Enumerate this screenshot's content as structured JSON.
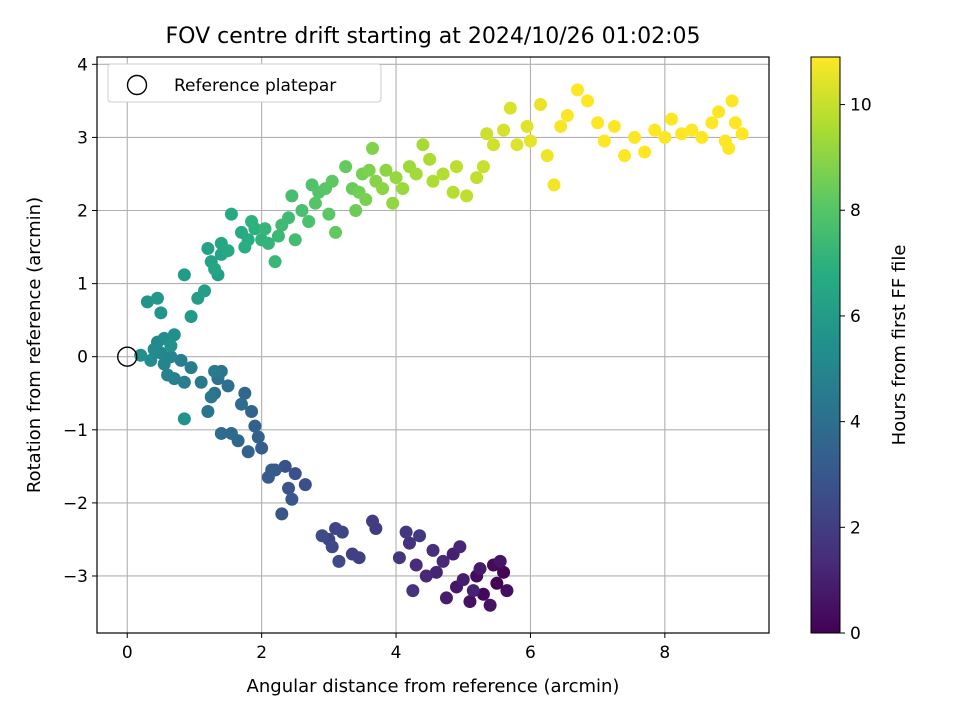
{
  "chart_data": {
    "type": "scatter",
    "title": "FOV centre drift starting at 2024/10/26 01:02:05",
    "xlabel": "Angular distance from reference (arcmin)",
    "ylabel": "Rotation from reference (arcmin)",
    "xlim": [
      -0.45,
      9.55
    ],
    "ylim": [
      -3.78,
      4.1
    ],
    "xticks": [
      0,
      2,
      4,
      6,
      8
    ],
    "yticks": [
      -3,
      -2,
      -1,
      0,
      1,
      2,
      3,
      4
    ],
    "grid": true,
    "legend": {
      "position": "top-left",
      "entries": [
        "Reference platepar"
      ]
    },
    "reference_point": {
      "x": 0,
      "y": 0,
      "label": "Reference platepar"
    },
    "colorbar": {
      "label": "Hours from first FF file",
      "min": 0,
      "max": 10.9,
      "ticks": [
        0,
        2,
        4,
        6,
        8,
        10
      ],
      "colormap": "viridis"
    },
    "points": [
      [
        5.5,
        -3.1,
        0.05
      ],
      [
        5.6,
        -2.95,
        0.12
      ],
      [
        5.3,
        -3.25,
        0.2
      ],
      [
        5.45,
        -2.85,
        0.28
      ],
      [
        5.2,
        -3.0,
        0.35
      ],
      [
        5.65,
        -3.2,
        0.42
      ],
      [
        5.1,
        -3.35,
        0.5
      ],
      [
        5.4,
        -3.4,
        0.57
      ],
      [
        5.55,
        -2.8,
        0.64
      ],
      [
        4.9,
        -3.15,
        0.71
      ],
      [
        5.25,
        -2.9,
        0.78
      ],
      [
        4.75,
        -3.3,
        0.85
      ],
      [
        5.0,
        -3.05,
        0.92
      ],
      [
        4.85,
        -2.7,
        0.99
      ],
      [
        5.15,
        -3.2,
        1.06
      ],
      [
        4.6,
        -2.95,
        1.13
      ],
      [
        4.95,
        -2.6,
        1.2
      ],
      [
        4.45,
        -3.0,
        1.27
      ],
      [
        4.7,
        -2.8,
        1.34
      ],
      [
        4.3,
        -2.85,
        1.41
      ],
      [
        4.55,
        -2.65,
        1.48
      ],
      [
        4.2,
        -2.55,
        1.55
      ],
      [
        4.25,
        -3.2,
        1.62
      ],
      [
        4.05,
        -2.75,
        1.7
      ],
      [
        4.15,
        -2.4,
        1.78
      ],
      [
        4.35,
        -2.45,
        1.85
      ],
      [
        3.7,
        -2.35,
        1.92
      ],
      [
        3.65,
        -2.25,
        2.0
      ],
      [
        3.45,
        -2.75,
        2.07
      ],
      [
        3.35,
        -2.7,
        2.14
      ],
      [
        3.1,
        -2.35,
        2.21
      ],
      [
        3.0,
        -2.5,
        2.28
      ],
      [
        3.2,
        -2.4,
        2.35
      ],
      [
        3.05,
        -2.6,
        2.42
      ],
      [
        3.15,
        -2.8,
        2.5
      ],
      [
        2.9,
        -2.45,
        2.57
      ],
      [
        2.65,
        -1.75,
        2.64
      ],
      [
        2.5,
        -1.6,
        2.71
      ],
      [
        2.35,
        -1.5,
        2.78
      ],
      [
        2.4,
        -1.8,
        2.85
      ],
      [
        2.3,
        -2.15,
        2.92
      ],
      [
        2.45,
        -1.95,
        3.0
      ],
      [
        2.2,
        -1.55,
        3.07
      ],
      [
        2.1,
        -1.65,
        3.14
      ],
      [
        2.15,
        -1.55,
        3.21
      ],
      [
        2.0,
        -1.25,
        3.28
      ],
      [
        1.95,
        -1.1,
        3.35
      ],
      [
        1.9,
        -0.95,
        3.42
      ],
      [
        1.8,
        -1.3,
        3.5
      ],
      [
        1.85,
        -0.75,
        3.57
      ],
      [
        1.75,
        -0.5,
        3.64
      ],
      [
        1.65,
        -1.15,
        3.71
      ],
      [
        1.55,
        -1.05,
        3.78
      ],
      [
        1.4,
        -1.05,
        3.85
      ],
      [
        1.7,
        -0.65,
        3.92
      ],
      [
        1.5,
        -0.4,
        4.0
      ],
      [
        1.35,
        -0.3,
        4.07
      ],
      [
        1.3,
        -0.5,
        4.14
      ],
      [
        1.4,
        -0.2,
        4.21
      ],
      [
        1.2,
        -0.75,
        4.28
      ],
      [
        1.25,
        -0.55,
        4.35
      ],
      [
        1.1,
        -0.35,
        4.42
      ],
      [
        1.3,
        -0.2,
        4.49
      ],
      [
        0.95,
        -0.15,
        4.56
      ],
      [
        0.85,
        -0.35,
        4.63
      ],
      [
        0.8,
        -0.05,
        4.7
      ],
      [
        0.7,
        -0.3,
        4.77
      ],
      [
        0.6,
        -0.25,
        4.84
      ],
      [
        0.65,
        0.0,
        4.91
      ],
      [
        0.55,
        -0.1,
        4.98
      ],
      [
        0.5,
        0.05,
        5.05
      ],
      [
        0.45,
        0.2,
        5.12
      ],
      [
        0.4,
        0.1,
        5.19
      ],
      [
        0.35,
        -0.05,
        5.26
      ],
      [
        0.55,
        0.25,
        5.33
      ],
      [
        0.7,
        0.3,
        5.4
      ],
      [
        0.2,
        0.02,
        5.47
      ],
      [
        0.85,
        -0.85,
        5.54
      ],
      [
        0.65,
        0.15,
        5.61
      ],
      [
        0.3,
        0.75,
        5.68
      ],
      [
        0.5,
        0.6,
        5.75
      ],
      [
        0.45,
        0.8,
        5.82
      ],
      [
        0.95,
        0.55,
        5.89
      ],
      [
        0.85,
        1.12,
        5.96
      ],
      [
        1.05,
        0.8,
        6.03
      ],
      [
        1.15,
        0.9,
        6.1
      ],
      [
        1.35,
        1.12,
        6.17
      ],
      [
        1.25,
        1.3,
        6.24
      ],
      [
        1.2,
        1.48,
        6.31
      ],
      [
        1.4,
        1.4,
        6.38
      ],
      [
        1.3,
        1.2,
        6.45
      ],
      [
        1.4,
        1.55,
        6.52
      ],
      [
        1.5,
        1.45,
        6.59
      ],
      [
        1.55,
        1.95,
        6.66
      ],
      [
        1.7,
        1.7,
        6.73
      ],
      [
        1.8,
        1.6,
        6.8
      ],
      [
        1.75,
        1.5,
        6.87
      ],
      [
        1.9,
        1.75,
        6.94
      ],
      [
        1.85,
        1.85,
        7.01
      ],
      [
        2.0,
        1.6,
        7.08
      ],
      [
        2.1,
        1.55,
        7.15
      ],
      [
        2.05,
        1.75,
        7.22
      ],
      [
        2.2,
        1.3,
        7.29
      ],
      [
        2.25,
        1.65,
        7.36
      ],
      [
        2.3,
        1.8,
        7.43
      ],
      [
        2.4,
        1.9,
        7.5
      ],
      [
        2.5,
        1.6,
        7.57
      ],
      [
        2.45,
        2.2,
        7.64
      ],
      [
        2.6,
        2.0,
        7.71
      ],
      [
        2.7,
        1.85,
        7.78
      ],
      [
        2.75,
        2.35,
        7.85
      ],
      [
        2.85,
        2.25,
        7.92
      ],
      [
        2.8,
        2.1,
        7.99
      ],
      [
        2.95,
        2.3,
        8.06
      ],
      [
        3.0,
        1.95,
        8.13
      ],
      [
        3.05,
        2.4,
        8.2
      ],
      [
        3.1,
        1.7,
        8.27
      ],
      [
        3.25,
        2.6,
        8.34
      ],
      [
        3.35,
        2.3,
        8.41
      ],
      [
        3.4,
        2.0,
        8.48
      ],
      [
        3.45,
        2.25,
        8.55
      ],
      [
        3.5,
        2.5,
        8.62
      ],
      [
        3.55,
        2.15,
        8.69
      ],
      [
        3.6,
        2.55,
        8.76
      ],
      [
        3.65,
        2.85,
        8.83
      ],
      [
        3.7,
        2.4,
        8.9
      ],
      [
        3.8,
        2.3,
        8.97
      ],
      [
        3.85,
        2.55,
        9.04
      ],
      [
        3.95,
        2.1,
        9.11
      ],
      [
        4.0,
        2.45,
        9.18
      ],
      [
        4.1,
        2.3,
        9.25
      ],
      [
        4.2,
        2.6,
        9.32
      ],
      [
        4.3,
        2.5,
        9.39
      ],
      [
        4.4,
        2.9,
        9.46
      ],
      [
        4.5,
        2.7,
        9.53
      ],
      [
        4.55,
        2.4,
        9.6
      ],
      [
        4.7,
        2.5,
        9.67
      ],
      [
        4.85,
        2.25,
        9.74
      ],
      [
        4.9,
        2.6,
        9.81
      ],
      [
        5.05,
        2.2,
        9.88
      ],
      [
        5.2,
        2.45,
        9.95
      ],
      [
        5.3,
        2.6,
        10.02
      ],
      [
        5.35,
        3.05,
        10.09
      ],
      [
        5.45,
        2.9,
        10.16
      ],
      [
        5.6,
        3.1,
        10.23
      ],
      [
        5.7,
        3.4,
        10.3
      ],
      [
        5.8,
        2.9,
        10.37
      ],
      [
        5.95,
        3.15,
        10.44
      ],
      [
        6.0,
        2.95,
        10.51
      ],
      [
        6.15,
        3.45,
        10.58
      ],
      [
        6.25,
        2.75,
        10.65
      ],
      [
        6.35,
        2.35,
        10.72
      ],
      [
        6.45,
        3.15,
        10.79
      ],
      [
        6.55,
        3.3,
        10.86
      ],
      [
        6.7,
        3.65,
        10.88
      ],
      [
        6.85,
        3.5,
        10.9
      ],
      [
        7.0,
        3.2,
        10.9
      ],
      [
        7.1,
        2.95,
        10.9
      ],
      [
        7.25,
        3.15,
        10.9
      ],
      [
        7.4,
        2.75,
        10.9
      ],
      [
        7.55,
        3.0,
        10.9
      ],
      [
        7.7,
        2.8,
        10.9
      ],
      [
        7.85,
        3.1,
        10.9
      ],
      [
        8.0,
        3.0,
        10.9
      ],
      [
        8.1,
        3.25,
        10.9
      ],
      [
        8.25,
        3.05,
        10.9
      ],
      [
        8.4,
        3.1,
        10.9
      ],
      [
        8.55,
        3.0,
        10.9
      ],
      [
        8.7,
        3.2,
        10.9
      ],
      [
        8.8,
        3.35,
        10.9
      ],
      [
        8.9,
        2.95,
        10.9
      ],
      [
        9.0,
        3.5,
        10.9
      ],
      [
        9.05,
        3.2,
        10.9
      ],
      [
        9.15,
        3.05,
        10.9
      ],
      [
        8.95,
        2.85,
        10.9
      ]
    ]
  }
}
